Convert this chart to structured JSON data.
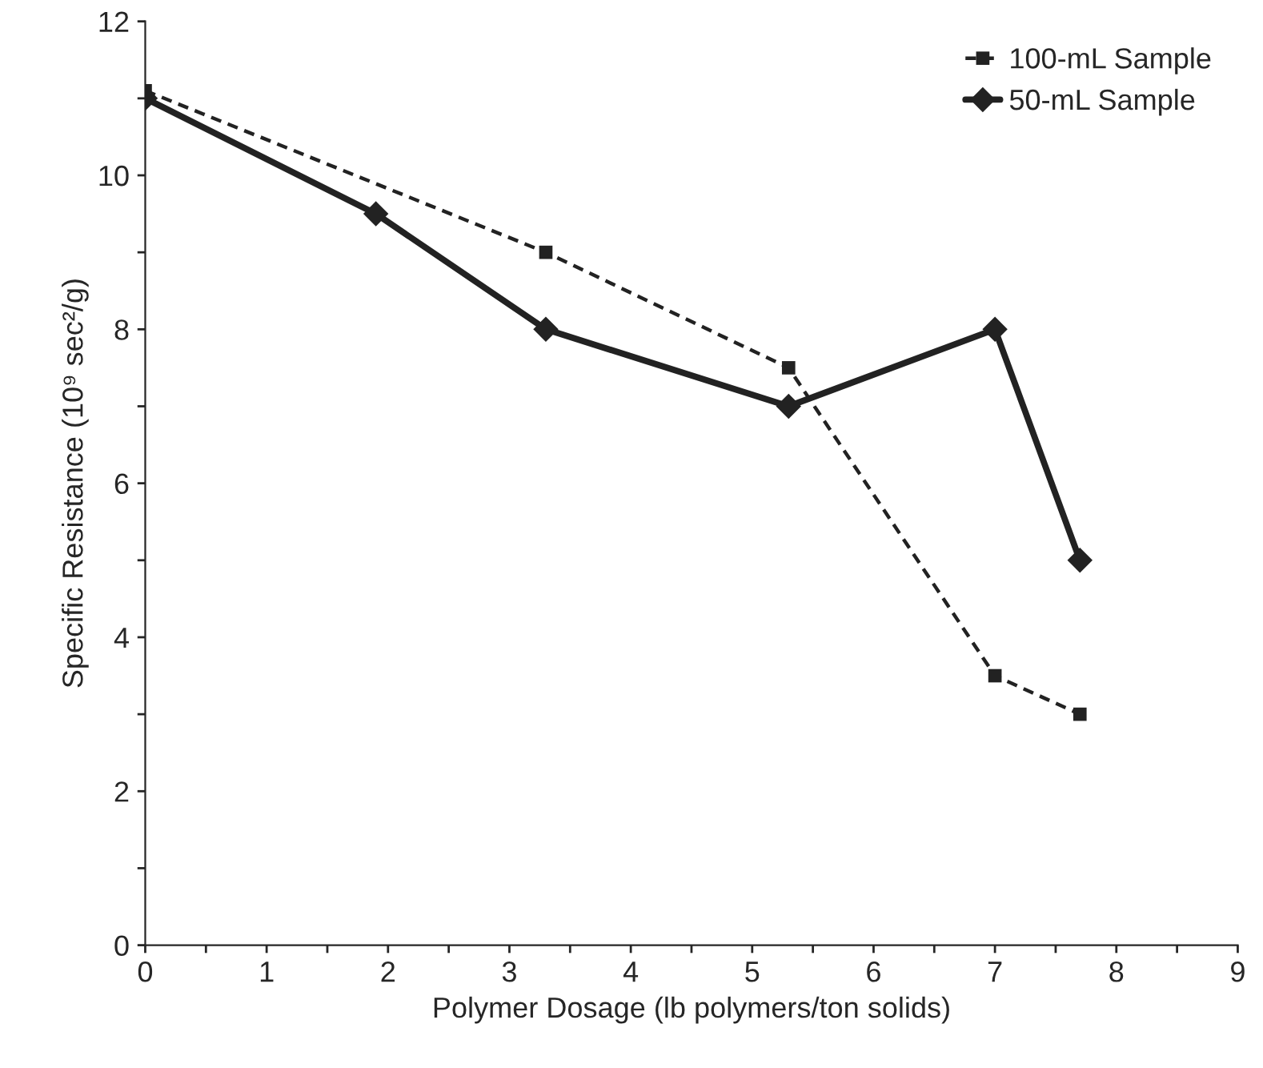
{
  "chart_data": {
    "type": "line",
    "xlabel": "Polymer Dosage (lb polymers/ton solids)",
    "ylabel": "Specific Resistance (10⁹ sec²/g)",
    "xlim": [
      0,
      9
    ],
    "ylim": [
      0,
      12
    ],
    "xticks": [
      0,
      {
        "value": 0.5,
        "label": null
      },
      1,
      {
        "value": 1.5,
        "label": null
      },
      2,
      {
        "value": 2.5,
        "label": null
      },
      3,
      {
        "value": 3.5,
        "label": null
      },
      4,
      {
        "value": 4.5,
        "label": null
      },
      5,
      {
        "value": 5.5,
        "label": null
      },
      6,
      {
        "value": 6.5,
        "label": null
      },
      7,
      {
        "value": 7.5,
        "label": null
      },
      8,
      {
        "value": 8.5,
        "label": null
      },
      9
    ],
    "yticks": [
      0,
      {
        "value": 1,
        "label": null
      },
      2,
      {
        "value": 3,
        "label": null
      },
      4,
      {
        "value": 5,
        "label": null
      },
      6,
      {
        "value": 7,
        "label": null
      },
      8,
      {
        "value": 9,
        "label": null
      },
      10,
      {
        "value": 11,
        "label": null
      },
      12
    ],
    "grid": false,
    "legend": "top right",
    "series": [
      {
        "name": "100-mL Sample",
        "color": "#222222",
        "marker": "square",
        "line_style": "dashed",
        "x": [
          0,
          3.3,
          5.3,
          7,
          7.7
        ],
        "values": [
          11.1,
          9,
          7.5,
          3.5,
          3
        ]
      },
      {
        "name": "50-mL Sample",
        "color": "#222222",
        "marker": "diamond",
        "line_style": "solid",
        "x": [
          0,
          1.9,
          3.3,
          5.3,
          7,
          7.7
        ],
        "values": [
          11,
          9.5,
          8,
          7,
          8,
          5
        ]
      }
    ]
  }
}
